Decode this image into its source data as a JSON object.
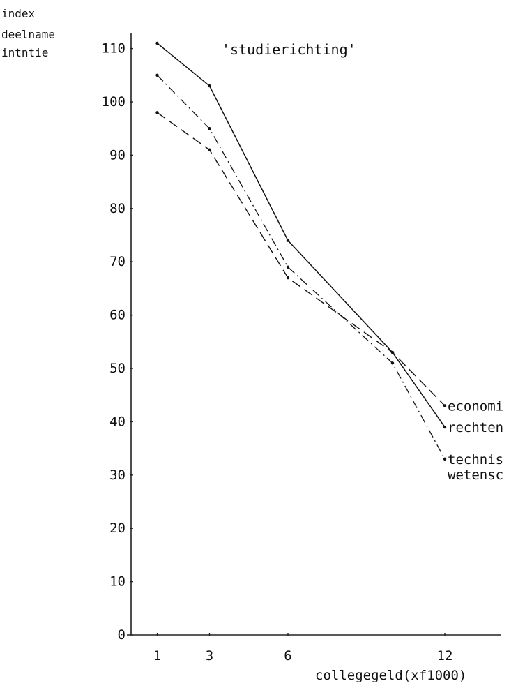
{
  "chart_data": {
    "type": "line",
    "title": "'studierichting'",
    "ylabel_lines": [
      "index",
      "deelname",
      "intntie"
    ],
    "xlabel": "collegegeld(xf1000)",
    "x": [
      1,
      3,
      6,
      10,
      12
    ],
    "x_ticks": [
      1,
      3,
      6,
      12
    ],
    "y_ticks": [
      0,
      10,
      20,
      30,
      40,
      50,
      60,
      70,
      80,
      90,
      100,
      110
    ],
    "xlim": [
      0,
      14
    ],
    "ylim": [
      0,
      110
    ],
    "grid": false,
    "legend": "labels at line ends (right)",
    "series": [
      {
        "name": "economi",
        "style": "dashed",
        "values": [
          98,
          91,
          67,
          53,
          43
        ]
      },
      {
        "name": "rechten",
        "style": "solid",
        "values": [
          111,
          103,
          74,
          53,
          39
        ]
      },
      {
        "name": "technis wetensc",
        "label_lines": [
          "technis",
          "wetensc"
        ],
        "style": "dashdot",
        "values": [
          105,
          95,
          69,
          51,
          33
        ]
      }
    ]
  }
}
